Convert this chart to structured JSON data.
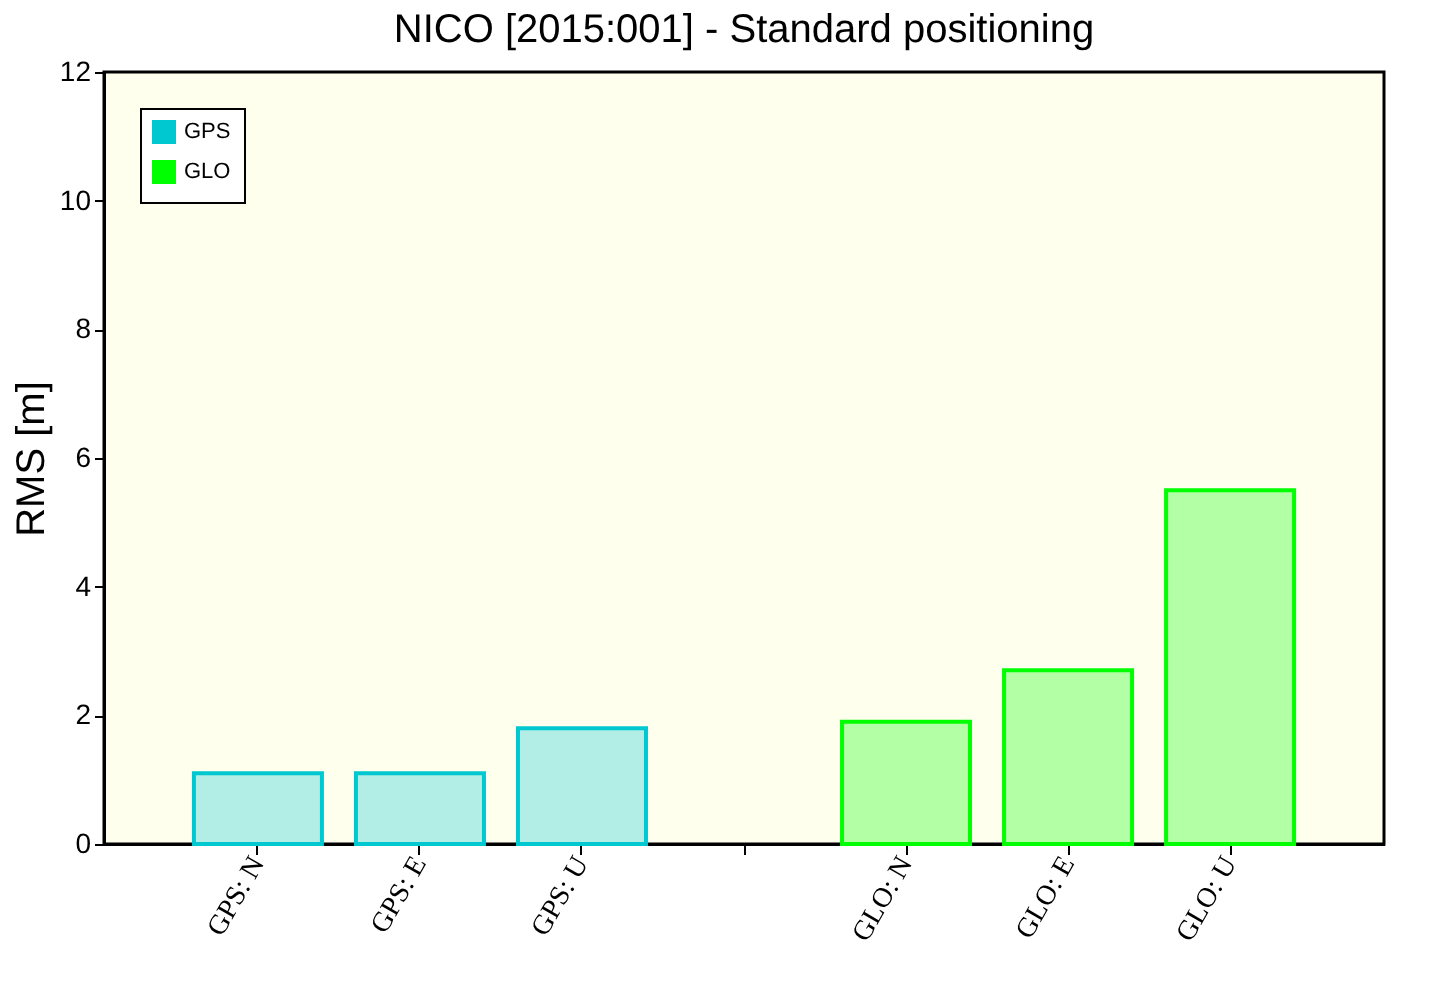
{
  "chart_data": {
    "type": "bar",
    "title": "NICO [2015:001] - Standard positioning",
    "ylabel": "RMS [m]",
    "categories": [
      "GPS: N",
      "GPS: E",
      "GPS: U",
      null,
      "GLO: N",
      "GLO: E",
      "GLO: U"
    ],
    "series": [
      {
        "name": "GPS",
        "color": "#00c8d0",
        "values": [
          1.1,
          1.1,
          1.8,
          null,
          null,
          null,
          null
        ]
      },
      {
        "name": "GLO",
        "color": "#00ff00",
        "values": [
          null,
          null,
          null,
          null,
          1.9,
          2.7,
          5.5
        ]
      }
    ],
    "ylim": [
      0,
      12
    ],
    "yticks": [
      0,
      2,
      4,
      6,
      8,
      10,
      12
    ],
    "grid": false,
    "legend": "top left"
  }
}
